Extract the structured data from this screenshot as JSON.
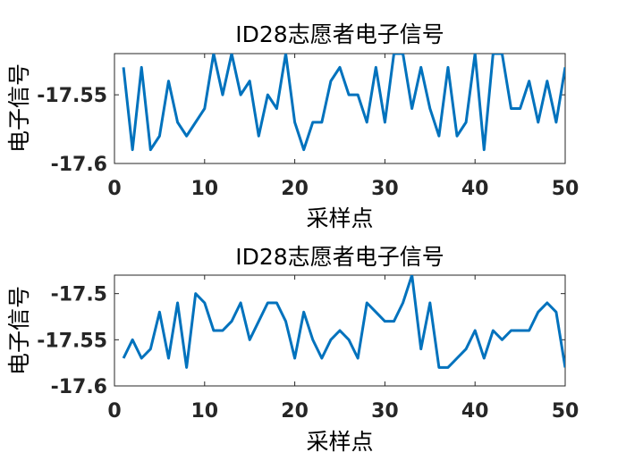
{
  "chart_data": [
    {
      "type": "line",
      "title": "ID28志愿者电子信号",
      "xlabel": "采样点",
      "ylabel": "电子信号",
      "xlim": [
        0,
        50
      ],
      "ylim": [
        -17.6,
        -17.52
      ],
      "xticks": [
        0,
        10,
        20,
        30,
        40,
        50
      ],
      "yticks": [
        -17.6,
        -17.55
      ],
      "ytick_labels": [
        "-17.6",
        "-17.55"
      ],
      "line_color": "#0072BD",
      "series": [
        {
          "x": [
            1,
            2,
            3,
            4,
            5,
            6,
            7,
            8,
            9,
            10,
            11,
            12,
            13,
            14,
            15,
            16,
            17,
            18,
            19,
            20,
            21,
            22,
            23,
            24,
            25,
            26,
            27,
            28,
            29,
            30,
            31,
            32,
            33,
            34,
            35,
            36,
            37,
            38,
            39,
            40,
            41,
            42,
            43,
            44,
            45,
            46,
            47,
            48,
            49,
            50
          ],
          "values": [
            -17.53,
            -17.59,
            -17.53,
            -17.59,
            -17.58,
            -17.54,
            -17.57,
            -17.58,
            -17.57,
            -17.56,
            -17.52,
            -17.55,
            -17.52,
            -17.55,
            -17.54,
            -17.58,
            -17.55,
            -17.56,
            -17.52,
            -17.57,
            -17.59,
            -17.57,
            -17.57,
            -17.54,
            -17.53,
            -17.55,
            -17.55,
            -17.57,
            -17.53,
            -17.57,
            -17.52,
            -17.52,
            -17.56,
            -17.53,
            -17.56,
            -17.58,
            -17.53,
            -17.58,
            -17.57,
            -17.52,
            -17.59,
            -17.52,
            -17.52,
            -17.56,
            -17.56,
            -17.54,
            -17.57,
            -17.54,
            -17.57,
            -17.53
          ]
        }
      ]
    },
    {
      "type": "line",
      "title": "ID28志愿者电子信号",
      "xlabel": "采样点",
      "ylabel": "电子信号",
      "xlim": [
        0,
        50
      ],
      "ylim": [
        -17.6,
        -17.48
      ],
      "xticks": [
        0,
        10,
        20,
        30,
        40,
        50
      ],
      "yticks": [
        -17.6,
        -17.55,
        -17.5
      ],
      "ytick_labels": [
        "-17.6",
        "-17.55",
        "-17.5"
      ],
      "line_color": "#0072BD",
      "series": [
        {
          "x": [
            1,
            2,
            3,
            4,
            5,
            6,
            7,
            8,
            9,
            10,
            11,
            12,
            13,
            14,
            15,
            16,
            17,
            18,
            19,
            20,
            21,
            22,
            23,
            24,
            25,
            26,
            27,
            28,
            29,
            30,
            31,
            32,
            33,
            34,
            35,
            36,
            37,
            38,
            39,
            40,
            41,
            42,
            43,
            44,
            45,
            46,
            47,
            48,
            49,
            50
          ],
          "values": [
            -17.57,
            -17.55,
            -17.57,
            -17.56,
            -17.52,
            -17.57,
            -17.51,
            -17.58,
            -17.5,
            -17.51,
            -17.54,
            -17.54,
            -17.53,
            -17.51,
            -17.55,
            -17.53,
            -17.51,
            -17.51,
            -17.53,
            -17.57,
            -17.52,
            -17.55,
            -17.57,
            -17.55,
            -17.54,
            -17.55,
            -17.57,
            -17.51,
            -17.52,
            -17.53,
            -17.53,
            -17.51,
            -17.48,
            -17.56,
            -17.51,
            -17.58,
            -17.58,
            -17.57,
            -17.56,
            -17.54,
            -17.57,
            -17.54,
            -17.55,
            -17.54,
            -17.54,
            -17.54,
            -17.52,
            -17.51,
            -17.52,
            -17.58
          ]
        }
      ]
    }
  ]
}
